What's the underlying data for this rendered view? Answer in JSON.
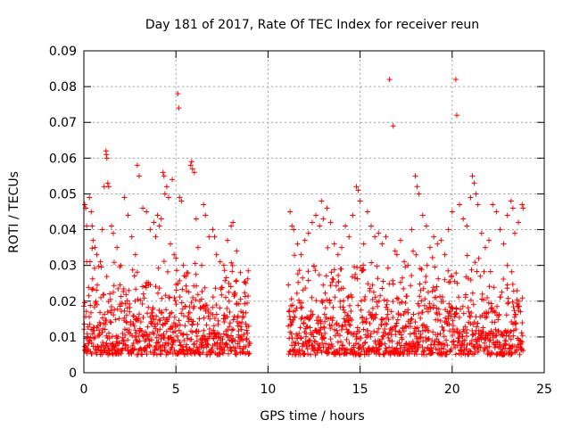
{
  "chart_data": {
    "type": "scatter",
    "title": "Day 181 of 2017, Rate Of TEC Index for receiver reun",
    "xlabel": "GPS time / hours",
    "ylabel": "ROTI / TECUs",
    "xlim": [
      0,
      25
    ],
    "ylim": [
      0,
      0.09
    ],
    "xticks": [
      0,
      5,
      10,
      15,
      20,
      25
    ],
    "yticks": [
      0,
      0.01,
      0.02,
      0.03,
      0.04,
      0.05,
      0.06,
      0.07,
      0.08,
      0.09
    ],
    "xtick_labels": [
      "0",
      "5",
      "10",
      "15",
      "20",
      "25"
    ],
    "ytick_labels": [
      "0",
      "0.01",
      "0.02",
      "0.03",
      "0.04",
      "0.05",
      "0.06",
      "0.07",
      "0.08",
      "0.09"
    ],
    "grid": true,
    "marker": "+",
    "color": "#ff0000",
    "data_gap_hours": [
      9.0,
      11.1
    ],
    "points": [
      [
        0.05,
        0.047
      ],
      [
        0.1,
        0.046
      ],
      [
        0.15,
        0.041
      ],
      [
        0.3,
        0.049
      ],
      [
        0.4,
        0.045
      ],
      [
        0.45,
        0.041
      ],
      [
        0.5,
        0.037
      ],
      [
        0.6,
        0.035
      ],
      [
        0.7,
        0.033
      ],
      [
        0.9,
        0.031
      ],
      [
        1.0,
        0.04
      ],
      [
        1.1,
        0.052
      ],
      [
        1.2,
        0.062
      ],
      [
        1.22,
        0.061
      ],
      [
        1.25,
        0.06
      ],
      [
        1.3,
        0.053
      ],
      [
        1.35,
        0.052
      ],
      [
        1.5,
        0.041
      ],
      [
        1.6,
        0.039
      ],
      [
        1.8,
        0.035
      ],
      [
        2.0,
        0.03
      ],
      [
        2.2,
        0.049
      ],
      [
        2.4,
        0.044
      ],
      [
        2.6,
        0.038
      ],
      [
        2.8,
        0.033
      ],
      [
        2.9,
        0.058
      ],
      [
        3.0,
        0.055
      ],
      [
        3.2,
        0.046
      ],
      [
        3.4,
        0.045
      ],
      [
        3.6,
        0.04
      ],
      [
        3.8,
        0.042
      ],
      [
        3.9,
        0.038
      ],
      [
        4.0,
        0.044
      ],
      [
        4.1,
        0.041
      ],
      [
        4.2,
        0.043
      ],
      [
        4.3,
        0.056
      ],
      [
        4.35,
        0.055
      ],
      [
        4.4,
        0.05
      ],
      [
        4.5,
        0.052
      ],
      [
        4.6,
        0.049
      ],
      [
        4.7,
        0.036
      ],
      [
        4.8,
        0.054
      ],
      [
        4.9,
        0.033
      ],
      [
        5.0,
        0.032
      ],
      [
        5.1,
        0.078
      ],
      [
        5.15,
        0.074
      ],
      [
        5.2,
        0.049
      ],
      [
        5.3,
        0.048
      ],
      [
        5.4,
        0.03
      ],
      [
        5.6,
        0.028
      ],
      [
        5.8,
        0.058
      ],
      [
        5.85,
        0.059
      ],
      [
        5.9,
        0.057
      ],
      [
        6.0,
        0.056
      ],
      [
        6.1,
        0.043
      ],
      [
        6.2,
        0.035
      ],
      [
        6.4,
        0.03
      ],
      [
        6.5,
        0.047
      ],
      [
        6.6,
        0.044
      ],
      [
        6.8,
        0.038
      ],
      [
        7.0,
        0.04
      ],
      [
        7.1,
        0.038
      ],
      [
        7.2,
        0.033
      ],
      [
        7.4,
        0.031
      ],
      [
        7.6,
        0.03
      ],
      [
        7.8,
        0.037
      ],
      [
        8.0,
        0.041
      ],
      [
        8.1,
        0.042
      ],
      [
        8.3,
        0.034
      ],
      [
        8.5,
        0.028
      ],
      [
        8.8,
        0.025
      ],
      [
        11.2,
        0.045
      ],
      [
        11.3,
        0.041
      ],
      [
        11.4,
        0.04
      ],
      [
        11.6,
        0.036
      ],
      [
        11.8,
        0.033
      ],
      [
        12.0,
        0.037
      ],
      [
        12.2,
        0.039
      ],
      [
        12.4,
        0.042
      ],
      [
        12.6,
        0.044
      ],
      [
        12.8,
        0.041
      ],
      [
        12.9,
        0.048
      ],
      [
        13.0,
        0.043
      ],
      [
        13.2,
        0.046
      ],
      [
        13.4,
        0.042
      ],
      [
        13.6,
        0.036
      ],
      [
        13.8,
        0.033
      ],
      [
        14.0,
        0.035
      ],
      [
        14.2,
        0.041
      ],
      [
        14.4,
        0.038
      ],
      [
        14.6,
        0.044
      ],
      [
        14.8,
        0.052
      ],
      [
        14.9,
        0.051
      ],
      [
        15.0,
        0.048
      ],
      [
        15.2,
        0.036
      ],
      [
        15.4,
        0.045
      ],
      [
        15.6,
        0.041
      ],
      [
        15.8,
        0.038
      ],
      [
        16.0,
        0.039
      ],
      [
        16.2,
        0.036
      ],
      [
        16.4,
        0.038
      ],
      [
        16.6,
        0.082
      ],
      [
        16.8,
        0.069
      ],
      [
        16.9,
        0.034
      ],
      [
        17.0,
        0.033
      ],
      [
        17.2,
        0.037
      ],
      [
        17.4,
        0.031
      ],
      [
        17.6,
        0.03
      ],
      [
        17.8,
        0.04
      ],
      [
        18.0,
        0.055
      ],
      [
        18.1,
        0.052
      ],
      [
        18.2,
        0.05
      ],
      [
        18.4,
        0.044
      ],
      [
        18.6,
        0.041
      ],
      [
        18.8,
        0.035
      ],
      [
        19.0,
        0.038
      ],
      [
        19.2,
        0.036
      ],
      [
        19.4,
        0.037
      ],
      [
        19.6,
        0.033
      ],
      [
        19.8,
        0.04
      ],
      [
        20.0,
        0.045
      ],
      [
        20.2,
        0.082
      ],
      [
        20.25,
        0.072
      ],
      [
        20.4,
        0.047
      ],
      [
        20.6,
        0.043
      ],
      [
        20.8,
        0.041
      ],
      [
        21.0,
        0.049
      ],
      [
        21.1,
        0.055
      ],
      [
        21.2,
        0.053
      ],
      [
        21.3,
        0.05
      ],
      [
        21.4,
        0.047
      ],
      [
        21.6,
        0.039
      ],
      [
        21.8,
        0.035
      ],
      [
        22.0,
        0.037
      ],
      [
        22.2,
        0.047
      ],
      [
        22.4,
        0.045
      ],
      [
        22.6,
        0.04
      ],
      [
        22.8,
        0.036
      ],
      [
        23.0,
        0.044
      ],
      [
        23.2,
        0.048
      ],
      [
        23.3,
        0.046
      ],
      [
        23.4,
        0.039
      ],
      [
        23.6,
        0.042
      ],
      [
        23.8,
        0.047
      ],
      [
        23.85,
        0.046
      ]
    ]
  }
}
